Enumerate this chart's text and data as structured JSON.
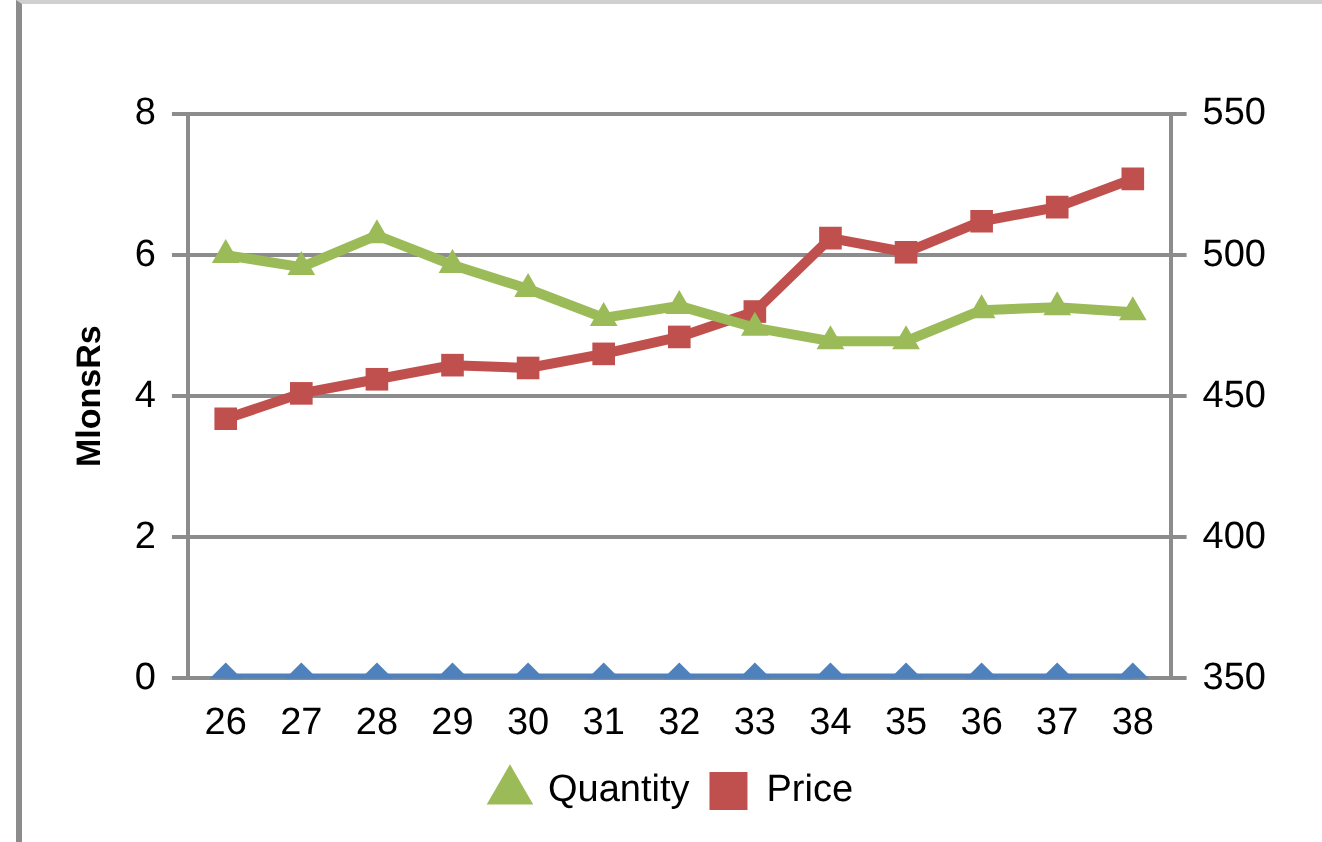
{
  "chart_data": {
    "type": "line",
    "ylabel": "MlonsRs",
    "categories": [
      "26",
      "27",
      "28",
      "29",
      "30",
      "31",
      "32",
      "33",
      "34",
      "35",
      "36",
      "37",
      "38"
    ],
    "series": [
      {
        "color": "#4f81bd",
        "marker": "diamond",
        "values": [
          0,
          0,
          0,
          0,
          0,
          0,
          0,
          0,
          0,
          0,
          0,
          0,
          0
        ]
      },
      {
        "name": "Quantity",
        "color": "#9bbb59",
        "marker": "triangle",
        "values": [
          6.0,
          5.83,
          6.28,
          5.86,
          5.52,
          5.11,
          5.28,
          4.97,
          4.78,
          4.78,
          5.22,
          5.26,
          5.19
        ]
      },
      {
        "name": "Price",
        "color": "#c0504d",
        "marker": "square",
        "axis": "y2",
        "values": [
          442,
          451,
          456,
          461,
          460,
          465,
          471,
          480,
          506,
          501,
          512,
          517,
          527
        ]
      }
    ],
    "ylim": [
      0,
      8
    ],
    "yticks": [
      0,
      2,
      4,
      6,
      8
    ],
    "y2lim": [
      350,
      550
    ],
    "y2ticks": [
      350,
      400,
      450,
      500,
      550
    ],
    "grid": "y",
    "legend": "bottom"
  }
}
